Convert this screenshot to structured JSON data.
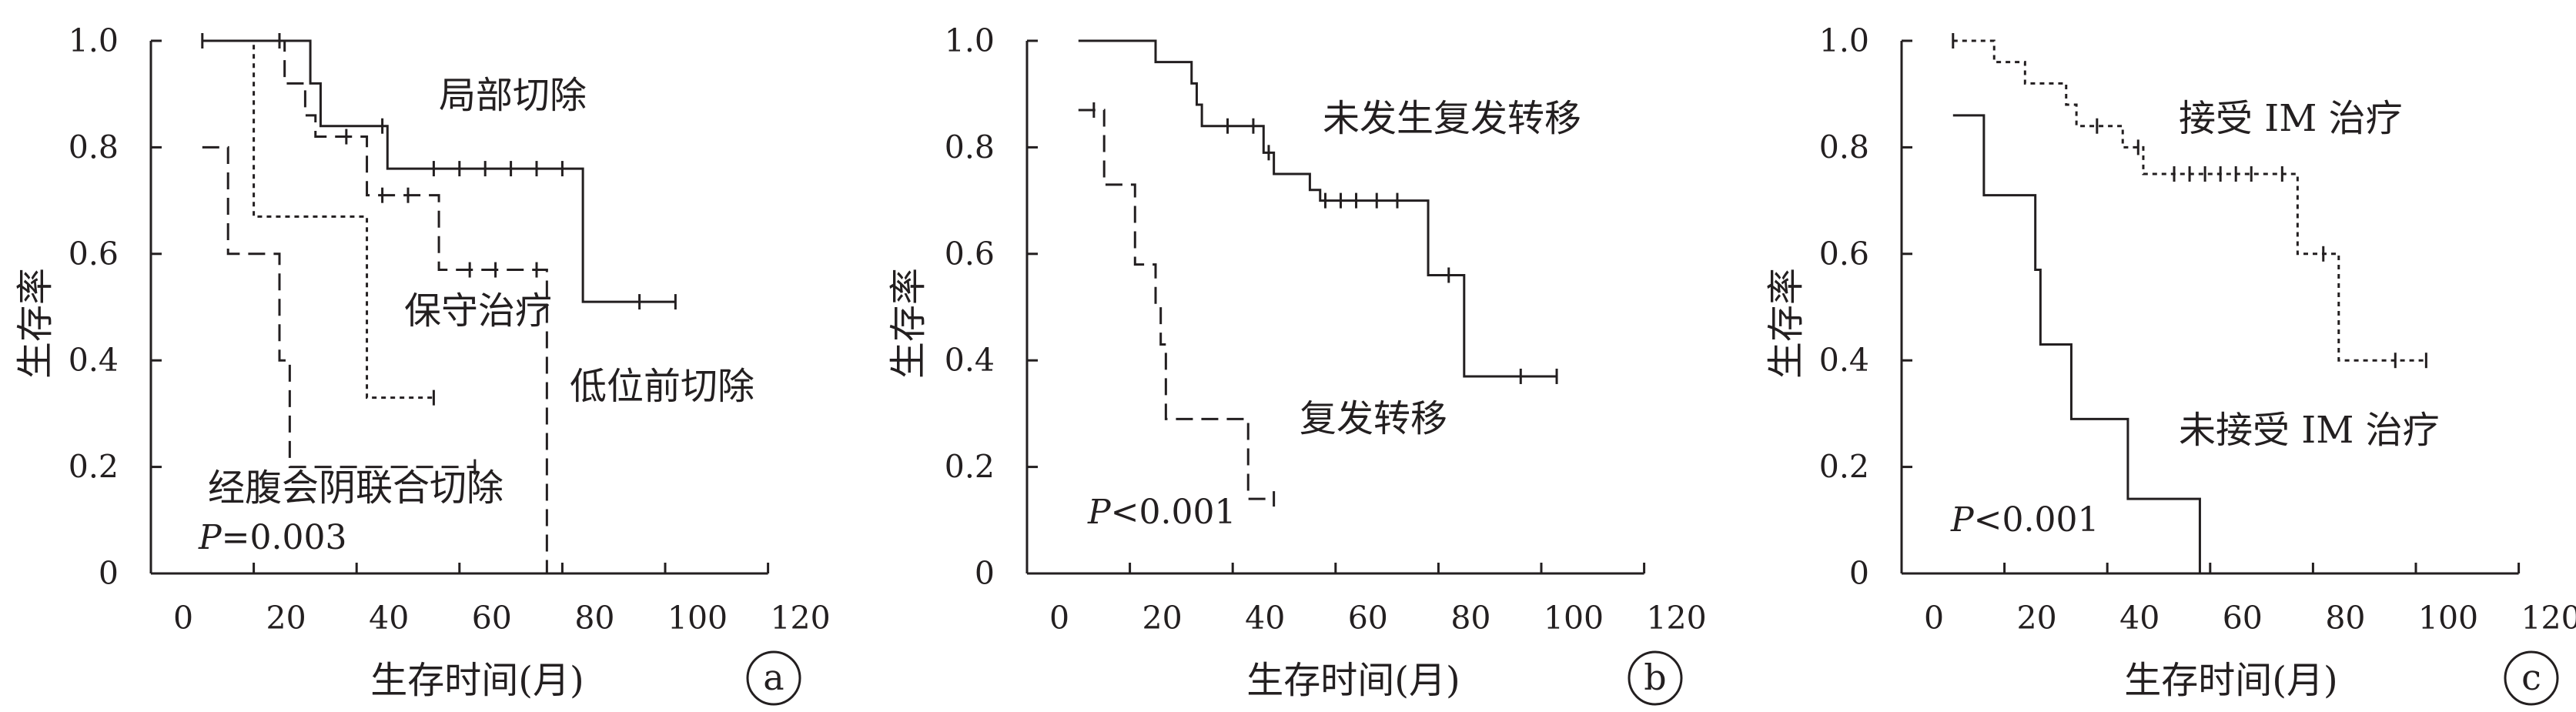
{
  "chart_data": [
    {
      "type": "line",
      "panel": "a",
      "xlabel": "生存时间(月)",
      "ylabel": "生存率",
      "xlim": [
        0,
        120
      ],
      "ylim": [
        0,
        1.0
      ],
      "xticks": [
        "0",
        "20",
        "40",
        "60",
        "80",
        "100",
        "120"
      ],
      "yticks": [
        "0",
        "0.2",
        "0.4",
        "0.6",
        "0.8",
        "1.0"
      ],
      "annotation_p": "=0.003",
      "series": [
        {
          "name": "局部切除",
          "style": "solid",
          "steps": [
            [
              10,
              1.0
            ],
            [
              31,
              0.92
            ],
            [
              33,
              0.84
            ],
            [
              46,
              0.76
            ],
            [
              84,
              0.51
            ],
            [
              102,
              0.51
            ]
          ],
          "censored": [
            [
              10,
              1.0
            ],
            [
              45,
              0.84
            ],
            [
              55,
              0.76
            ],
            [
              60,
              0.76
            ],
            [
              65,
              0.76
            ],
            [
              70,
              0.76
            ],
            [
              75,
              0.76
            ],
            [
              80,
              0.76
            ],
            [
              95,
              0.51
            ],
            [
              102,
              0.51
            ]
          ]
        },
        {
          "name": "低位前切除",
          "style": "dashed",
          "steps": [
            [
              10,
              1.0
            ],
            [
              26,
              0.92
            ],
            [
              30,
              0.86
            ],
            [
              32,
              0.82
            ],
            [
              42,
              0.71
            ],
            [
              56,
              0.57
            ],
            [
              77,
              0.0
            ]
          ],
          "censored": [
            [
              25,
              1.0
            ],
            [
              38,
              0.82
            ],
            [
              45,
              0.71
            ],
            [
              50,
              0.71
            ],
            [
              62,
              0.57
            ],
            [
              67,
              0.57
            ],
            [
              75,
              0.57
            ]
          ]
        },
        {
          "name": "保守治疗",
          "style": "dotted",
          "steps": [
            [
              10,
              1.0
            ],
            [
              20,
              0.67
            ],
            [
              42,
              0.33
            ],
            [
              55,
              0.33
            ]
          ],
          "censored": [
            [
              55,
              0.33
            ]
          ]
        },
        {
          "name": "经腹会阴联合切除",
          "style": "dashed",
          "steps": [
            [
              10,
              0.8
            ],
            [
              15,
              0.6
            ],
            [
              25,
              0.4
            ],
            [
              27,
              0.2
            ],
            [
              63,
              0.2
            ]
          ],
          "censored": [
            [
              63,
              0.2
            ]
          ]
        }
      ]
    },
    {
      "type": "line",
      "panel": "b",
      "xlabel": "生存时间(月)",
      "ylabel": "生存率",
      "xlim": [
        0,
        120
      ],
      "ylim": [
        0,
        1.0
      ],
      "xticks": [
        "0",
        "20",
        "40",
        "60",
        "80",
        "100",
        "120"
      ],
      "yticks": [
        "0",
        "0.2",
        "0.4",
        "0.6",
        "0.8",
        "1.0"
      ],
      "annotation_p": "<0.001",
      "series": [
        {
          "name": "未发生复发转移",
          "style": "solid",
          "steps": [
            [
              10,
              1.0
            ],
            [
              25,
              0.96
            ],
            [
              32,
              0.92
            ],
            [
              33,
              0.88
            ],
            [
              34,
              0.84
            ],
            [
              46,
              0.79
            ],
            [
              48,
              0.75
            ],
            [
              55,
              0.72
            ],
            [
              57,
              0.7
            ],
            [
              78,
              0.56
            ],
            [
              85,
              0.37
            ],
            [
              103,
              0.37
            ]
          ],
          "censored": [
            [
              39,
              0.84
            ],
            [
              44,
              0.84
            ],
            [
              47,
              0.79
            ],
            [
              58,
              0.7
            ],
            [
              61,
              0.7
            ],
            [
              64,
              0.7
            ],
            [
              68,
              0.7
            ],
            [
              72,
              0.7
            ],
            [
              82,
              0.56
            ],
            [
              96,
              0.37
            ],
            [
              103,
              0.37
            ]
          ]
        },
        {
          "name": "复发转移",
          "style": "dashed",
          "steps": [
            [
              10,
              0.87
            ],
            [
              15,
              0.73
            ],
            [
              21,
              0.58
            ],
            [
              25,
              0.5
            ],
            [
              26,
              0.43
            ],
            [
              27,
              0.29
            ],
            [
              43,
              0.14
            ],
            [
              48,
              0.14
            ]
          ],
          "censored": [
            [
              13,
              0.87
            ],
            [
              48,
              0.14
            ]
          ]
        }
      ]
    },
    {
      "type": "line",
      "panel": "c",
      "xlabel": "生存时间(月)",
      "ylabel": "生存率",
      "xlim": [
        0,
        120
      ],
      "ylim": [
        0,
        1.0
      ],
      "xticks": [
        "0",
        "20",
        "40",
        "60",
        "80",
        "100",
        "120"
      ],
      "yticks": [
        "0",
        "0.2",
        "0.4",
        "0.6",
        "0.8",
        "1.0"
      ],
      "annotation_p": "<0.001",
      "series": [
        {
          "name": "接受 IM 治疗",
          "style": "dotted",
          "steps": [
            [
              10,
              1.0
            ],
            [
              18,
              0.96
            ],
            [
              24,
              0.92
            ],
            [
              32,
              0.88
            ],
            [
              34,
              0.84
            ],
            [
              43,
              0.8
            ],
            [
              47,
              0.75
            ],
            [
              77,
              0.6
            ],
            [
              85,
              0.4
            ],
            [
              102,
              0.4
            ]
          ],
          "censored": [
            [
              10,
              1.0
            ],
            [
              38,
              0.84
            ],
            [
              46,
              0.8
            ],
            [
              53,
              0.75
            ],
            [
              56,
              0.75
            ],
            [
              59,
              0.75
            ],
            [
              62,
              0.75
            ],
            [
              65,
              0.75
            ],
            [
              68,
              0.75
            ],
            [
              74,
              0.75
            ],
            [
              82,
              0.6
            ],
            [
              96,
              0.4
            ],
            [
              102,
              0.4
            ]
          ]
        },
        {
          "name": "未接受 IM 治疗",
          "style": "solid",
          "steps": [
            [
              10,
              0.86
            ],
            [
              16,
              0.71
            ],
            [
              26,
              0.57
            ],
            [
              27,
              0.43
            ],
            [
              33,
              0.29
            ],
            [
              44,
              0.14
            ],
            [
              58,
              0.0
            ]
          ],
          "censored": []
        }
      ]
    }
  ],
  "p_symbol": "P",
  "panel_badges": [
    "a",
    "b",
    "c"
  ]
}
